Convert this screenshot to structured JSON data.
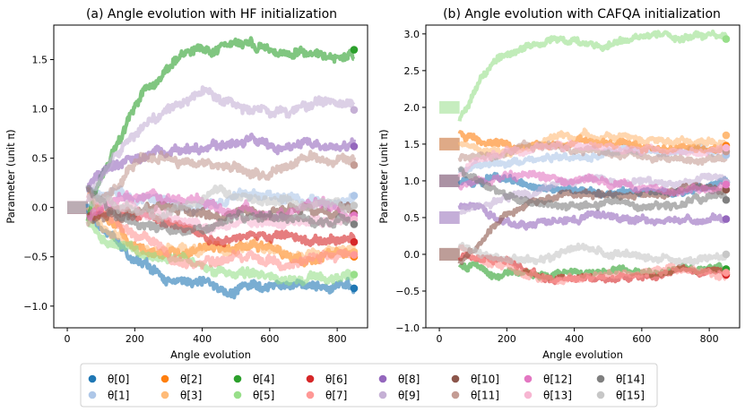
{
  "palette": {
    "c0": "#1f77b4",
    "c1": "#aec7e8",
    "c2": "#ff7f0e",
    "c3": "#ffbb78",
    "c4": "#2ca02c",
    "c5": "#98df8a",
    "c6": "#d62728",
    "c7": "#ff9896",
    "c8": "#9467bd",
    "c9": "#c5b0d5",
    "c10": "#8c564b",
    "c11": "#c49c94",
    "c12": "#e377c2",
    "c13": "#f7b6d2",
    "c14": "#7f7f7f",
    "c15": "#c7c7c7"
  },
  "legend": {
    "entries": [
      "θ[0]",
      "θ[1]",
      "θ[2]",
      "θ[3]",
      "θ[4]",
      "θ[5]",
      "θ[6]",
      "θ[7]",
      "θ[8]",
      "θ[9]",
      "θ[10]",
      "θ[11]",
      "θ[12]",
      "θ[13]",
      "θ[14]",
      "θ[15]"
    ]
  },
  "chart_data": [
    {
      "type": "line",
      "title": "(a) Angle evolution with HF initialization",
      "xlabel": "Angle evolution",
      "ylabel": "Parameter (unit π)",
      "xlim": [
        -40,
        890
      ],
      "ylim": [
        -1.22,
        1.85
      ],
      "xticks": [
        0,
        200,
        400,
        600,
        800
      ],
      "yticks": [
        -1.0,
        -0.5,
        0.0,
        0.5,
        1.0,
        1.5
      ],
      "ytick_labels": [
        "−1.0",
        "−0.5",
        "0.0",
        "0.5",
        "1.0",
        "1.5"
      ],
      "init_length": 60,
      "end_x": 850,
      "series": [
        {
          "name": "θ[0]",
          "initial": 0.0,
          "final": -0.82
        },
        {
          "name": "θ[1]",
          "initial": 0.0,
          "final": 0.12
        },
        {
          "name": "θ[2]",
          "initial": 0.0,
          "final": -0.5
        },
        {
          "name": "θ[3]",
          "initial": 0.0,
          "final": -0.45
        },
        {
          "name": "θ[4]",
          "initial": 0.0,
          "final": 1.6
        },
        {
          "name": "θ[5]",
          "initial": 0.0,
          "final": -0.68
        },
        {
          "name": "θ[6]",
          "initial": 0.0,
          "final": -0.35
        },
        {
          "name": "θ[7]",
          "initial": 0.0,
          "final": -0.48
        },
        {
          "name": "θ[8]",
          "initial": 0.0,
          "final": 0.62
        },
        {
          "name": "θ[9]",
          "initial": 0.0,
          "final": 0.99
        },
        {
          "name": "θ[10]",
          "initial": 0.0,
          "final": -0.06
        },
        {
          "name": "θ[11]",
          "initial": 0.0,
          "final": 0.43
        },
        {
          "name": "θ[12]",
          "initial": 0.0,
          "final": -0.08
        },
        {
          "name": "θ[13]",
          "initial": 0.0,
          "final": -0.12
        },
        {
          "name": "θ[14]",
          "initial": 0.0,
          "final": -0.17
        },
        {
          "name": "θ[15]",
          "initial": 0.0,
          "final": 0.02
        }
      ]
    },
    {
      "type": "line",
      "title": "(b) Angle evolution with CAFQA initialization",
      "xlabel": "Angle evolution",
      "ylabel": "Parameter (unit π)",
      "xlim": [
        -40,
        890
      ],
      "ylim": [
        -1.0,
        3.12
      ],
      "xticks": [
        0,
        200,
        400,
        600,
        800
      ],
      "yticks": [
        -1.0,
        -0.5,
        0.0,
        0.5,
        1.0,
        1.5,
        2.0,
        2.5,
        3.0
      ],
      "ytick_labels": [
        "−1.0",
        "−0.5",
        "0.0",
        "0.5",
        "1.0",
        "1.5",
        "2.0",
        "2.5",
        "3.0"
      ],
      "init_length": 60,
      "end_x": 850,
      "series": [
        {
          "name": "θ[0]",
          "initial": 1.0,
          "final": 0.98
        },
        {
          "name": "θ[1]",
          "initial": 1.0,
          "final": 1.35
        },
        {
          "name": "θ[2]",
          "initial": 1.5,
          "final": 1.48
        },
        {
          "name": "θ[3]",
          "initial": 1.5,
          "final": 1.62
        },
        {
          "name": "θ[4]",
          "initial": 0.0,
          "final": -0.2
        },
        {
          "name": "θ[5]",
          "initial": 2.0,
          "final": 2.93
        },
        {
          "name": "θ[6]",
          "initial": 0.0,
          "final": -0.28
        },
        {
          "name": "θ[7]",
          "initial": 0.0,
          "final": -0.25
        },
        {
          "name": "θ[8]",
          "initial": 0.5,
          "final": 0.48
        },
        {
          "name": "θ[9]",
          "initial": 0.5,
          "final": 0.98
        },
        {
          "name": "θ[10]",
          "initial": 0.0,
          "final": 0.88
        },
        {
          "name": "θ[11]",
          "initial": 1.5,
          "final": 1.4
        },
        {
          "name": "θ[12]",
          "initial": 1.0,
          "final": 0.95
        },
        {
          "name": "θ[13]",
          "initial": 1.0,
          "final": 1.45
        },
        {
          "name": "θ[14]",
          "initial": 1.0,
          "final": 0.74
        },
        {
          "name": "θ[15]",
          "initial": 0.0,
          "final": 0.0
        }
      ]
    }
  ]
}
